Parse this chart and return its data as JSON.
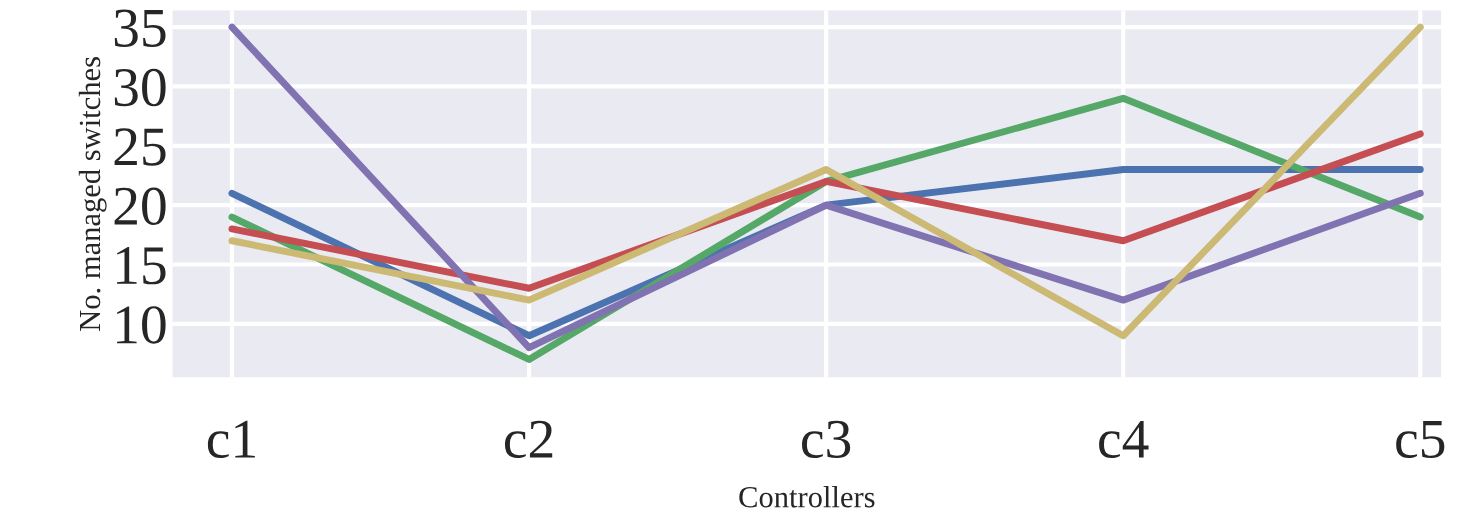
{
  "chart_data": {
    "type": "line",
    "xlabel": "Controllers",
    "ylabel": "No. managed switches",
    "categories": [
      "c1",
      "c2",
      "c3",
      "c4",
      "c5"
    ],
    "series": [
      {
        "color": "#4c72b0",
        "values": [
          21,
          9,
          20,
          23,
          23
        ]
      },
      {
        "color": "#55a868",
        "values": [
          19,
          7,
          22,
          29,
          19
        ]
      },
      {
        "color": "#c44e52",
        "values": [
          18,
          13,
          22,
          17,
          26
        ]
      },
      {
        "color": "#8172b2",
        "values": [
          35,
          8,
          20,
          12,
          21
        ]
      },
      {
        "color": "#ccb974",
        "values": [
          17,
          12,
          23,
          9,
          35
        ]
      }
    ],
    "ylim": [
      5.5,
      36.4
    ],
    "yticks": [
      10,
      15,
      20,
      25,
      30,
      35
    ],
    "grid": true,
    "marker": "none",
    "line_style": "solid"
  }
}
